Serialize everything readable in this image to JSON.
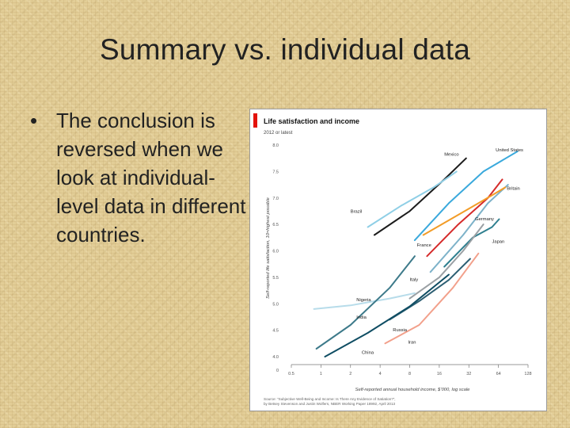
{
  "slide": {
    "title": "Summary vs. individual data",
    "bullet_symbol": "•",
    "bullet_text": "The conclusion is reversed when we look at individual-level data in different countries."
  },
  "colors": {
    "brand_red": "#e3120b"
  },
  "chart_data": {
    "type": "line",
    "title": "Life satisfaction and income",
    "subtitle": "2012 or latest",
    "xlabel": "Self-reported annual household income, $’000, log scale",
    "ylabel": "Self-reported life satisfaction, 10=highest possible",
    "x_scale": "log2",
    "xlim": [
      0.5,
      128
    ],
    "ylim": [
      4.0,
      8.0
    ],
    "x_ticks": [
      0.5,
      1,
      2,
      4,
      8,
      16,
      32,
      64,
      128
    ],
    "x_tick_labels": [
      "0.5",
      "1",
      "2",
      "4",
      "8",
      "16",
      "32",
      "64",
      "128"
    ],
    "y_ticks": [
      4.0,
      4.5,
      5.0,
      5.5,
      6.0,
      6.5,
      7.0,
      7.5,
      8.0
    ],
    "y_tick_labels": [
      "4.0",
      "4.5",
      "5.0",
      "5.5",
      "6.0",
      "6.5",
      "7.0",
      "7.5",
      "8.0"
    ],
    "y_break_label": "0",
    "grid": false,
    "source": "Source: “Subjective Well-Being and Income: Is There Any Evidence of Satiation?”, by Betsey Stevenson and Justin Wolfers, NBER Working Paper 18992, April 2013",
    "series": [
      {
        "name": "United States",
        "color": "#3aa9dc",
        "points": [
          [
            9,
            6.2
          ],
          [
            20,
            6.9
          ],
          [
            45,
            7.5
          ],
          [
            100,
            7.88
          ]
        ]
      },
      {
        "name": "Mexico",
        "color": "#1c1c1c",
        "points": [
          [
            3.5,
            6.3
          ],
          [
            8,
            6.75
          ],
          [
            18,
            7.35
          ],
          [
            30,
            7.75
          ]
        ]
      },
      {
        "name": "Brazil",
        "color": "#8fcfe6",
        "points": [
          [
            3,
            6.45
          ],
          [
            6.5,
            6.85
          ],
          [
            14,
            7.2
          ],
          [
            24,
            7.5
          ]
        ]
      },
      {
        "name": "Britain",
        "color": "#d52b2b",
        "points": [
          [
            12,
            5.9
          ],
          [
            25,
            6.5
          ],
          [
            50,
            7.0
          ],
          [
            70,
            7.35
          ]
        ]
      },
      {
        "name": "Germany",
        "color": "#7db2c9",
        "points": [
          [
            13,
            5.6
          ],
          [
            28,
            6.3
          ],
          [
            50,
            6.9
          ],
          [
            80,
            7.25
          ]
        ]
      },
      {
        "name": "France",
        "color": "#f29c27",
        "points": [
          [
            11,
            6.3
          ],
          [
            26,
            6.7
          ],
          [
            55,
            7.05
          ],
          [
            75,
            7.2
          ]
        ]
      },
      {
        "name": "Japan",
        "color": "#2f7f8f",
        "points": [
          [
            18,
            5.7
          ],
          [
            35,
            6.25
          ],
          [
            55,
            6.45
          ],
          [
            65,
            6.6
          ]
        ]
      },
      {
        "name": "Italy",
        "color": "#9aa0a4",
        "points": [
          [
            8,
            5.1
          ],
          [
            16,
            5.5
          ],
          [
            28,
            6.0
          ],
          [
            45,
            6.5
          ]
        ]
      },
      {
        "name": "Nigeria",
        "color": "#b7dcea",
        "points": [
          [
            0.85,
            4.9
          ],
          [
            2,
            4.97
          ],
          [
            5,
            5.1
          ],
          [
            9,
            5.2
          ]
        ]
      },
      {
        "name": "India",
        "color": "#3d7a8a",
        "points": [
          [
            0.9,
            4.15
          ],
          [
            2,
            4.6
          ],
          [
            5,
            5.3
          ],
          [
            9,
            5.9
          ]
        ]
      },
      {
        "name": "Russia",
        "color": "#2d5f73",
        "points": [
          [
            5,
            4.7
          ],
          [
            10,
            5.05
          ],
          [
            20,
            5.45
          ],
          [
            33,
            5.85
          ]
        ]
      },
      {
        "name": "China",
        "color": "#0f4d63",
        "points": [
          [
            1.1,
            4.0
          ],
          [
            3,
            4.45
          ],
          [
            8,
            4.95
          ],
          [
            20,
            5.55
          ]
        ]
      },
      {
        "name": "Iran",
        "color": "#f2a08b",
        "points": [
          [
            4.5,
            4.25
          ],
          [
            10,
            4.6
          ],
          [
            22,
            5.3
          ],
          [
            40,
            5.95
          ]
        ]
      }
    ],
    "labels": [
      {
        "text": "United States",
        "x": 60,
        "y": 7.88,
        "color": "#1a1a1a"
      },
      {
        "text": "Mexico",
        "x": 18,
        "y": 7.8,
        "color": "#1a1a1a"
      },
      {
        "text": "Brazil",
        "x": 2.0,
        "y": 6.72,
        "color": "#1a1a1a"
      },
      {
        "text": "Britain",
        "x": 78,
        "y": 7.15,
        "color": "#1a1a1a"
      },
      {
        "text": "Germany",
        "x": 37,
        "y": 6.58,
        "color": "#1a1a1a"
      },
      {
        "text": "France",
        "x": 9.5,
        "y": 6.08,
        "color": "#1a1a1a"
      },
      {
        "text": "Japan",
        "x": 55,
        "y": 6.15,
        "color": "#1a1a1a"
      },
      {
        "text": "Italy",
        "x": 8,
        "y": 5.43,
        "color": "#1a1a1a"
      },
      {
        "text": "Nigeria",
        "x": 2.3,
        "y": 5.05,
        "color": "#1a1a1a"
      },
      {
        "text": "India",
        "x": 2.3,
        "y": 4.72,
        "color": "#1a1a1a"
      },
      {
        "text": "Russia",
        "x": 5.4,
        "y": 4.48,
        "color": "#1a1a1a"
      },
      {
        "text": "Iran",
        "x": 7.7,
        "y": 4.25,
        "color": "#1a1a1a"
      },
      {
        "text": "China",
        "x": 2.6,
        "y": 4.05,
        "color": "#1a1a1a"
      }
    ]
  }
}
